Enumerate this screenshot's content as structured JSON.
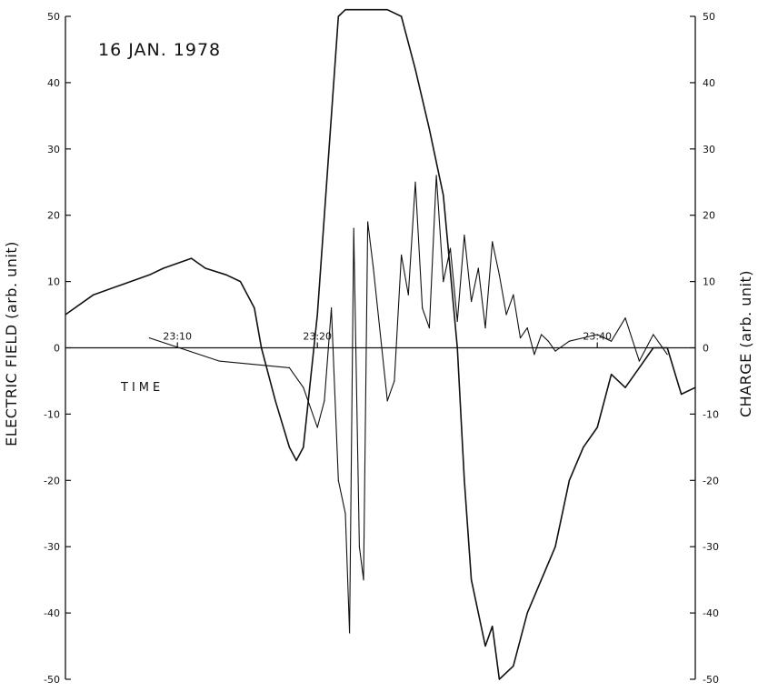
{
  "chart_data": {
    "type": "line",
    "title": "16 JAN. 1978",
    "xlabel": "TIME",
    "ylabel_left": "ELECTRIC FIELD (arb. unit)",
    "ylabel_right": "CHARGE (arb. unit)",
    "ylim": [
      -50,
      50
    ],
    "y_ticks": [
      50,
      40,
      30,
      20,
      10,
      0,
      -10,
      -20,
      -30,
      -40,
      -50
    ],
    "y_tick_labels": [
      "50",
      "40",
      "30",
      "20",
      "10",
      "0",
      "-10",
      "-20",
      "-30",
      "-40",
      "-50"
    ],
    "xlim": [
      "23:02",
      "23:47"
    ],
    "time_markers": [
      {
        "label": "23:10",
        "x": "23:10"
      },
      {
        "label": "23:20",
        "x": "23:20"
      },
      {
        "label": "23:40",
        "x": "23:40"
      }
    ],
    "grid": false,
    "series": [
      {
        "role": "electric_field",
        "x": [
          "23:02",
          "23:04",
          "23:06",
          "23:08",
          "23:09",
          "23:11",
          "23:12",
          "23:13.5",
          "23:14.5",
          "23:15.5",
          "23:16",
          "23:17",
          "23:18",
          "23:18.5",
          "23:19",
          "23:20",
          "23:21",
          "23:21.5",
          "23:22",
          "23:23",
          "23:24",
          "23:25",
          "23:26",
          "23:27",
          "23:28",
          "23:28.5",
          "23:29",
          "23:30",
          "23:30.5",
          "23:31",
          "23:32",
          "23:32.5",
          "23:33",
          "23:34",
          "23:35",
          "23:36",
          "23:37",
          "23:38",
          "23:39",
          "23:40",
          "23:41",
          "23:42",
          "23:43",
          "23:44",
          "23:45",
          "23:46",
          "23:47"
        ],
        "values": [
          5,
          8,
          9.5,
          11,
          12,
          13.5,
          12,
          11,
          10,
          6,
          0,
          -8,
          -15,
          -17,
          -15,
          5,
          35,
          50,
          51,
          51,
          51,
          51,
          50,
          42,
          33,
          28,
          23,
          0,
          -20,
          -35,
          -45,
          -42,
          -50,
          -48,
          -40,
          -35,
          -30,
          -20,
          -15,
          -12,
          -4,
          -6,
          -3,
          0,
          0,
          -7,
          -6
        ]
      },
      {
        "role": "charge",
        "x": [
          "23:08",
          "23:13",
          "23:18",
          "23:19",
          "23:20",
          "23:20.5",
          "23:21",
          "23:21.5",
          "23:22",
          "23:22.3",
          "23:22.6",
          "23:23",
          "23:23.3",
          "23:23.6",
          "23:24",
          "23:24.5",
          "23:25",
          "23:25.5",
          "23:26",
          "23:26.5",
          "23:27",
          "23:27.5",
          "23:28",
          "23:28.5",
          "23:29",
          "23:29.5",
          "23:30",
          "23:30.5",
          "23:31",
          "23:31.5",
          "23:32",
          "23:32.5",
          "23:33",
          "23:33.5",
          "23:34",
          "23:34.5",
          "23:35",
          "23:35.5",
          "23:36",
          "23:36.5",
          "23:37",
          "23:38",
          "23:40",
          "23:41",
          "23:42",
          "23:43",
          "23:44",
          "23:45"
        ],
        "values": [
          1.5,
          -2,
          -3,
          -6,
          -12,
          -8,
          6,
          -20,
          -25,
          -43,
          18,
          -30,
          -35,
          19,
          12,
          2,
          -8,
          -5,
          14,
          8,
          25,
          6,
          3,
          26,
          10,
          15,
          4,
          17,
          7,
          12,
          3,
          16,
          11,
          5,
          8,
          1.5,
          3,
          -1,
          2,
          1,
          -0.5,
          1,
          2,
          1,
          4.5,
          -2,
          2,
          -1
        ]
      }
    ]
  }
}
